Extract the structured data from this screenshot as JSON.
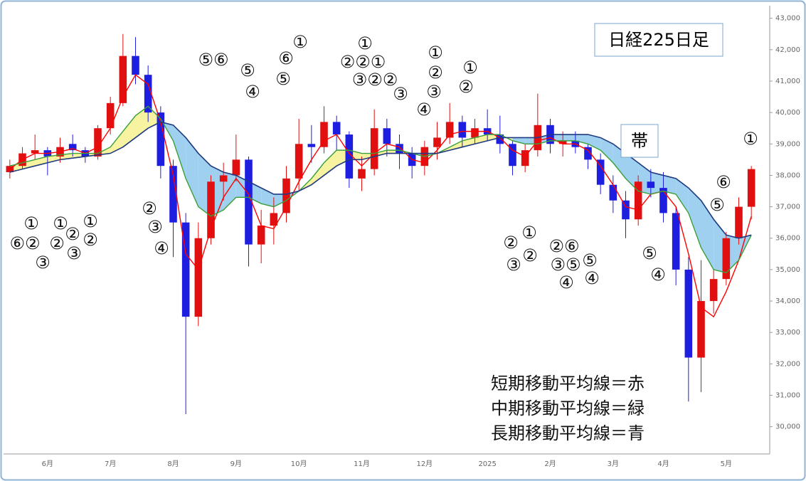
{
  "chart_data": {
    "type": "candlestick",
    "title": "日経225日足",
    "cloud_label": "帯",
    "notes": [
      "短期移動平均線＝赤",
      "中期移動平均線＝緑",
      "長期移動平均線＝青"
    ],
    "annotations": [
      "⑤⑥",
      "①",
      "⑥",
      "⑤",
      "⑤",
      "④",
      "①",
      "②②①",
      "③②②",
      "③",
      "①",
      "②",
      "③",
      "④",
      "①",
      "②",
      "①",
      "②",
      "②",
      "③",
      "②⑥",
      "⑤",
      "③⑤",
      "④",
      "④",
      "⑤",
      "④",
      "⑥",
      "⑤",
      "①",
      "②",
      "③",
      "④",
      "①",
      "①",
      "①",
      "②",
      "⑥②",
      "②",
      "②",
      "③",
      "③"
    ],
    "categories": [
      null,
      null,
      null,
      "6月",
      null,
      null,
      null,
      null,
      "7月",
      null,
      null,
      null,
      null,
      "8月",
      null,
      null,
      null,
      null,
      "9月",
      null,
      null,
      null,
      null,
      "10月",
      null,
      null,
      null,
      null,
      "11月",
      null,
      null,
      null,
      null,
      "12月",
      null,
      null,
      null,
      null,
      "2025",
      null,
      null,
      null,
      null,
      "2月",
      null,
      null,
      null,
      null,
      "3月",
      null,
      null,
      null,
      "4月",
      null,
      null,
      null,
      null,
      "5月",
      null,
      null
    ],
    "open": [
      38100,
      38300,
      38700,
      38800,
      38600,
      39000,
      38800,
      38600,
      39500,
      40300,
      41800,
      41200,
      40000,
      38300,
      36500,
      33500,
      36000,
      37800,
      38000,
      38500,
      35800,
      36400,
      36800,
      37900,
      39000,
      38900,
      39700,
      39300,
      37900,
      38200,
      39500,
      39000,
      38700,
      38300,
      38900,
      39200,
      39700,
      39200,
      39500,
      39300,
      39000,
      38300,
      38800,
      39600,
      39000,
      39100,
      38900,
      38500,
      37700,
      37200,
      36600,
      37800,
      37600,
      36800,
      35000,
      32200,
      34000,
      34700,
      36000,
      37000
    ],
    "high": [
      38500,
      38900,
      39300,
      38900,
      39200,
      39300,
      38900,
      39600,
      40500,
      42500,
      42400,
      41500,
      40200,
      38500,
      36800,
      36500,
      38000,
      38400,
      39300,
      38600,
      36900,
      37300,
      38300,
      39800,
      39600,
      40200,
      39900,
      39400,
      38600,
      40100,
      39800,
      39300,
      38900,
      39100,
      39700,
      40300,
      39900,
      39800,
      40100,
      39900,
      39100,
      39000,
      40600,
      39800,
      39400,
      39400,
      39000,
      38700,
      38000,
      37500,
      38000,
      38200,
      38100,
      37000,
      35400,
      35300,
      35000,
      36200,
      37300,
      38300
    ],
    "low": [
      37900,
      38200,
      38500,
      38000,
      38400,
      38600,
      38400,
      38500,
      39300,
      40200,
      40900,
      39700,
      37900,
      35400,
      30400,
      33200,
      35800,
      37200,
      37800,
      35100,
      35200,
      35800,
      36500,
      37500,
      38400,
      38700,
      38800,
      37600,
      37500,
      38000,
      38600,
      38200,
      37900,
      38000,
      38500,
      39000,
      38900,
      39000,
      39100,
      38700,
      38000,
      38100,
      38600,
      38700,
      38600,
      38700,
      38200,
      37400,
      36800,
      36000,
      36400,
      37300,
      36500,
      34500,
      30800,
      31100,
      33600,
      34500,
      35800,
      36600
    ],
    "close": [
      38300,
      38700,
      38800,
      38600,
      38900,
      38800,
      38600,
      39500,
      40300,
      41800,
      41200,
      40000,
      38300,
      36500,
      33500,
      36000,
      37800,
      38000,
      38500,
      35800,
      36400,
      36800,
      37900,
      39000,
      38900,
      39700,
      39300,
      37900,
      38200,
      39500,
      39000,
      38700,
      38300,
      38900,
      39200,
      39700,
      39200,
      39500,
      39300,
      39000,
      38300,
      38800,
      39600,
      39000,
      39100,
      38900,
      38500,
      37700,
      37200,
      36600,
      37800,
      37600,
      36800,
      35000,
      32200,
      34000,
      34700,
      36000,
      37000,
      38200
    ],
    "up_color": "#e01010",
    "down_color": "#1e1ee0",
    "lines": [
      {
        "color": "#ff0000",
        "values": [
          38200,
          38500,
          38700,
          38700,
          38750,
          38850,
          38700,
          38900,
          39500,
          40500,
          41200,
          40900,
          39700,
          38000,
          35500,
          35000,
          36300,
          37300,
          37900,
          37400,
          36400,
          36300,
          37000,
          37800,
          38500,
          39100,
          39300,
          38700,
          38300,
          38700,
          39000,
          38900,
          38500,
          38400,
          38800,
          39300,
          39400,
          39400,
          39400,
          39200,
          38800,
          38600,
          39100,
          39200,
          39000,
          39000,
          38800,
          38300,
          37700,
          37000,
          36900,
          37400,
          37500,
          37000,
          35500,
          33800,
          33500,
          34300,
          35300,
          36700
        ]
      },
      {
        "color": "#3aa03a",
        "values": [
          38300,
          38400,
          38500,
          38600,
          38650,
          38700,
          38700,
          38700,
          38900,
          39400,
          39900,
          40200,
          39800,
          39100,
          37900,
          37000,
          36700,
          36900,
          37300,
          37300,
          37100,
          37000,
          37200,
          37500,
          37900,
          38400,
          38800,
          38800,
          38700,
          38700,
          38800,
          38800,
          38700,
          38600,
          38700,
          38900,
          39100,
          39200,
          39300,
          39300,
          39100,
          39000,
          39000,
          39100,
          39100,
          39100,
          39000,
          38800,
          38400,
          37900,
          37500,
          37400,
          37500,
          37400,
          36800,
          35700,
          35000,
          34900,
          35300,
          36100
        ]
      },
      {
        "color": "#1f3a80",
        "values": [
          38100,
          38200,
          38300,
          38400,
          38500,
          38550,
          38600,
          38650,
          38700,
          38900,
          39200,
          39500,
          39700,
          39600,
          39200,
          38700,
          38300,
          38100,
          38000,
          37800,
          37600,
          37400,
          37400,
          37500,
          37700,
          38000,
          38300,
          38500,
          38500,
          38600,
          38700,
          38700,
          38700,
          38700,
          38700,
          38800,
          38900,
          39000,
          39100,
          39200,
          39200,
          39200,
          39200,
          39300,
          39300,
          39300,
          39300,
          39200,
          39000,
          38700,
          38400,
          38100,
          38000,
          37900,
          37600,
          37200,
          36600,
          36100,
          36000,
          36100
        ]
      }
    ],
    "cloud_colors": [
      "#f7f3a0",
      "#9fd0f0"
    ],
    "ylim": [
      29200,
      43400
    ],
    "yticks": [
      {
        "value": 30000,
        "label": "30,000"
      },
      {
        "value": 31000,
        "label": "31,000"
      },
      {
        "value": 32000,
        "label": "32,000"
      },
      {
        "value": 33000,
        "label": "33,000"
      },
      {
        "value": 34000,
        "label": "34,000"
      },
      {
        "value": 35000,
        "label": "35,000"
      },
      {
        "value": 36000,
        "label": "36,000"
      },
      {
        "value": 37000,
        "label": "37,000"
      },
      {
        "value": 38000,
        "label": "38,000"
      },
      {
        "value": 39000,
        "label": "39,000"
      },
      {
        "value": 40000,
        "label": "40,000"
      },
      {
        "value": 41000,
        "label": "41,000"
      },
      {
        "value": 42000,
        "label": "42,000"
      },
      {
        "value": 43000,
        "label": "43,000"
      }
    ]
  }
}
